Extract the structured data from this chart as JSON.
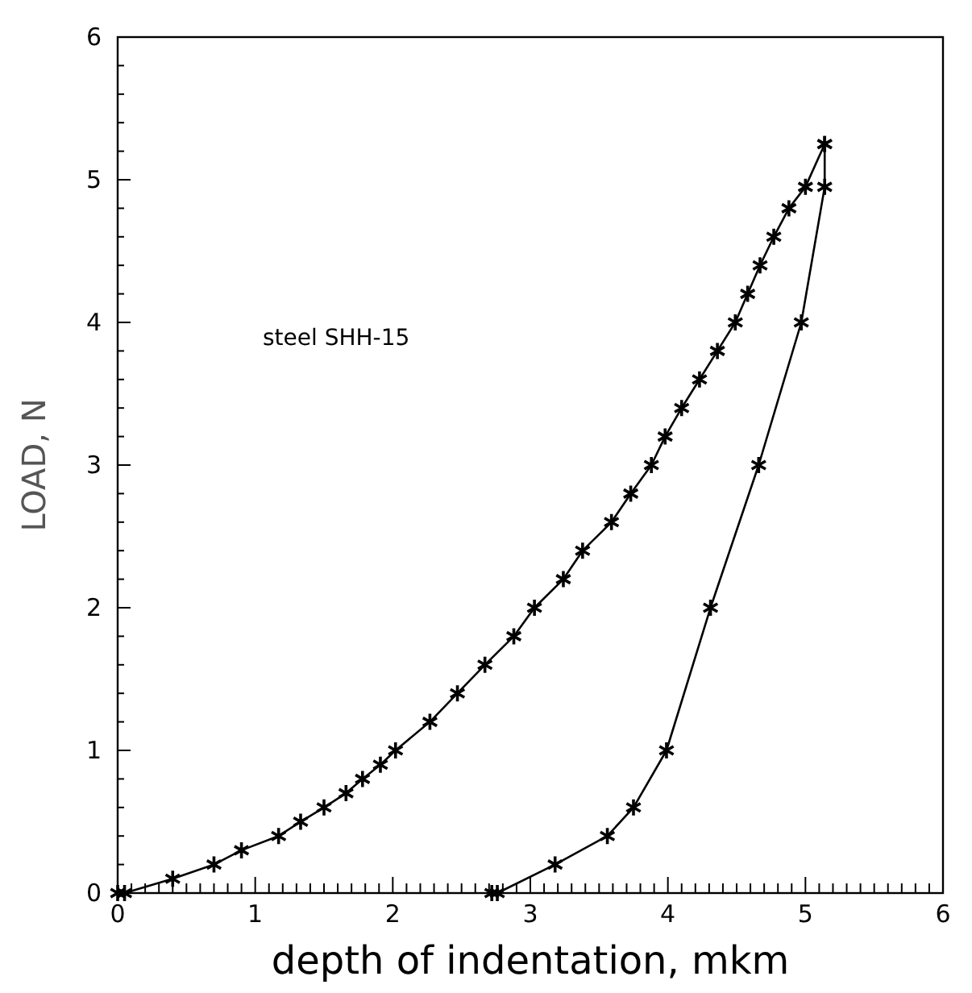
{
  "chart_data": {
    "type": "line",
    "xlabel": "depth of indentation, mkm",
    "ylabel": "LOAD, N",
    "annotations": [
      "steel SHH-15"
    ],
    "marker": "cross",
    "line_style": "solid",
    "grid": false,
    "xlim": [
      0,
      6
    ],
    "ylim": [
      0,
      6
    ],
    "xticks": [
      0,
      {
        "value": 0.1,
        "label": null
      },
      {
        "value": 0.2,
        "label": null
      },
      {
        "value": 0.3,
        "label": null
      },
      {
        "value": 0.4,
        "label": null
      },
      {
        "value": 0.5,
        "label": null
      },
      {
        "value": 0.6,
        "label": null
      },
      {
        "value": 0.7,
        "label": null
      },
      {
        "value": 0.8,
        "label": null
      },
      {
        "value": 0.9,
        "label": null
      },
      1,
      {
        "value": 1.1,
        "label": null
      },
      {
        "value": 1.2,
        "label": null
      },
      {
        "value": 1.3,
        "label": null
      },
      {
        "value": 1.4,
        "label": null
      },
      {
        "value": 1.5,
        "label": null
      },
      {
        "value": 1.6,
        "label": null
      },
      {
        "value": 1.7,
        "label": null
      },
      {
        "value": 1.8,
        "label": null
      },
      {
        "value": 1.9,
        "label": null
      },
      2,
      {
        "value": 2.1,
        "label": null
      },
      {
        "value": 2.2,
        "label": null
      },
      {
        "value": 2.3,
        "label": null
      },
      {
        "value": 2.4,
        "label": null
      },
      {
        "value": 2.5,
        "label": null
      },
      {
        "value": 2.6,
        "label": null
      },
      {
        "value": 2.7,
        "label": null
      },
      {
        "value": 2.8,
        "label": null
      },
      {
        "value": 2.9,
        "label": null
      },
      3,
      {
        "value": 3.1,
        "label": null
      },
      {
        "value": 3.2,
        "label": null
      },
      {
        "value": 3.3,
        "label": null
      },
      {
        "value": 3.4,
        "label": null
      },
      {
        "value": 3.5,
        "label": null
      },
      {
        "value": 3.6,
        "label": null
      },
      {
        "value": 3.7,
        "label": null
      },
      {
        "value": 3.8,
        "label": null
      },
      {
        "value": 3.9,
        "label": null
      },
      4,
      {
        "value": 4.1,
        "label": null
      },
      {
        "value": 4.2,
        "label": null
      },
      {
        "value": 4.3,
        "label": null
      },
      {
        "value": 4.4,
        "label": null
      },
      {
        "value": 4.5,
        "label": null
      },
      {
        "value": 4.6,
        "label": null
      },
      {
        "value": 4.7,
        "label": null
      },
      {
        "value": 4.8,
        "label": null
      },
      {
        "value": 4.9,
        "label": null
      },
      5,
      {
        "value": 5.1,
        "label": null
      },
      {
        "value": 5.2,
        "label": null
      },
      {
        "value": 5.3,
        "label": null
      },
      {
        "value": 5.4,
        "label": null
      },
      {
        "value": 5.5,
        "label": null
      },
      {
        "value": 5.6,
        "label": null
      },
      {
        "value": 5.7,
        "label": null
      },
      {
        "value": 5.8,
        "label": null
      },
      {
        "value": 5.9,
        "label": null
      },
      6
    ],
    "yticks": [
      0,
      {
        "value": 0.2,
        "label": null
      },
      {
        "value": 0.4,
        "label": null
      },
      {
        "value": 0.6,
        "label": null
      },
      {
        "value": 0.8,
        "label": null
      },
      1,
      {
        "value": 1.2,
        "label": null
      },
      {
        "value": 1.4,
        "label": null
      },
      {
        "value": 1.6,
        "label": null
      },
      {
        "value": 1.8,
        "label": null
      },
      2,
      {
        "value": 2.2,
        "label": null
      },
      {
        "value": 2.4,
        "label": null
      },
      {
        "value": 2.6,
        "label": null
      },
      {
        "value": 2.8,
        "label": null
      },
      3,
      {
        "value": 3.2,
        "label": null
      },
      {
        "value": 3.4,
        "label": null
      },
      {
        "value": 3.6,
        "label": null
      },
      {
        "value": 3.8,
        "label": null
      },
      4,
      {
        "value": 4.2,
        "label": null
      },
      {
        "value": 4.4,
        "label": null
      },
      {
        "value": 4.6,
        "label": null
      },
      {
        "value": 4.8,
        "label": null
      },
      5,
      {
        "value": 5.2,
        "label": null
      },
      {
        "value": 5.4,
        "label": null
      },
      {
        "value": 5.6,
        "label": null
      },
      {
        "value": 5.8,
        "label": null
      },
      6
    ],
    "series": [
      {
        "color": "#000000",
        "x": [
          0,
          0.05,
          0.4,
          0.7,
          0.9,
          1.17,
          1.33,
          1.5,
          1.66,
          1.78,
          1.91,
          2.02,
          2.27,
          2.47,
          2.67,
          2.88,
          3.03,
          3.24,
          3.38,
          3.59,
          3.73,
          3.88,
          3.98,
          4.1,
          4.23,
          4.36,
          4.49,
          4.58,
          4.67,
          4.77,
          4.88,
          5.0,
          5.14
        ],
        "values": [
          0,
          0,
          0.1,
          0.2,
          0.3,
          0.4,
          0.5,
          0.6,
          0.7,
          0.8,
          0.9,
          1.0,
          1.2,
          1.4,
          1.6,
          1.8,
          2.0,
          2.2,
          2.4,
          2.6,
          2.8,
          3.0,
          3.2,
          3.4,
          3.6,
          3.8,
          4.0,
          4.2,
          4.4,
          4.6,
          4.8,
          4.95,
          5.25
        ]
      },
      {
        "color": "#000000",
        "x": [
          5.14,
          5.14,
          4.97,
          4.66,
          4.31,
          3.99,
          3.75,
          3.56,
          3.18,
          2.76,
          2.72
        ],
        "values": [
          5.25,
          4.95,
          4.0,
          3.0,
          2.0,
          1.0,
          0.6,
          0.4,
          0.2,
          0,
          0
        ]
      }
    ]
  }
}
